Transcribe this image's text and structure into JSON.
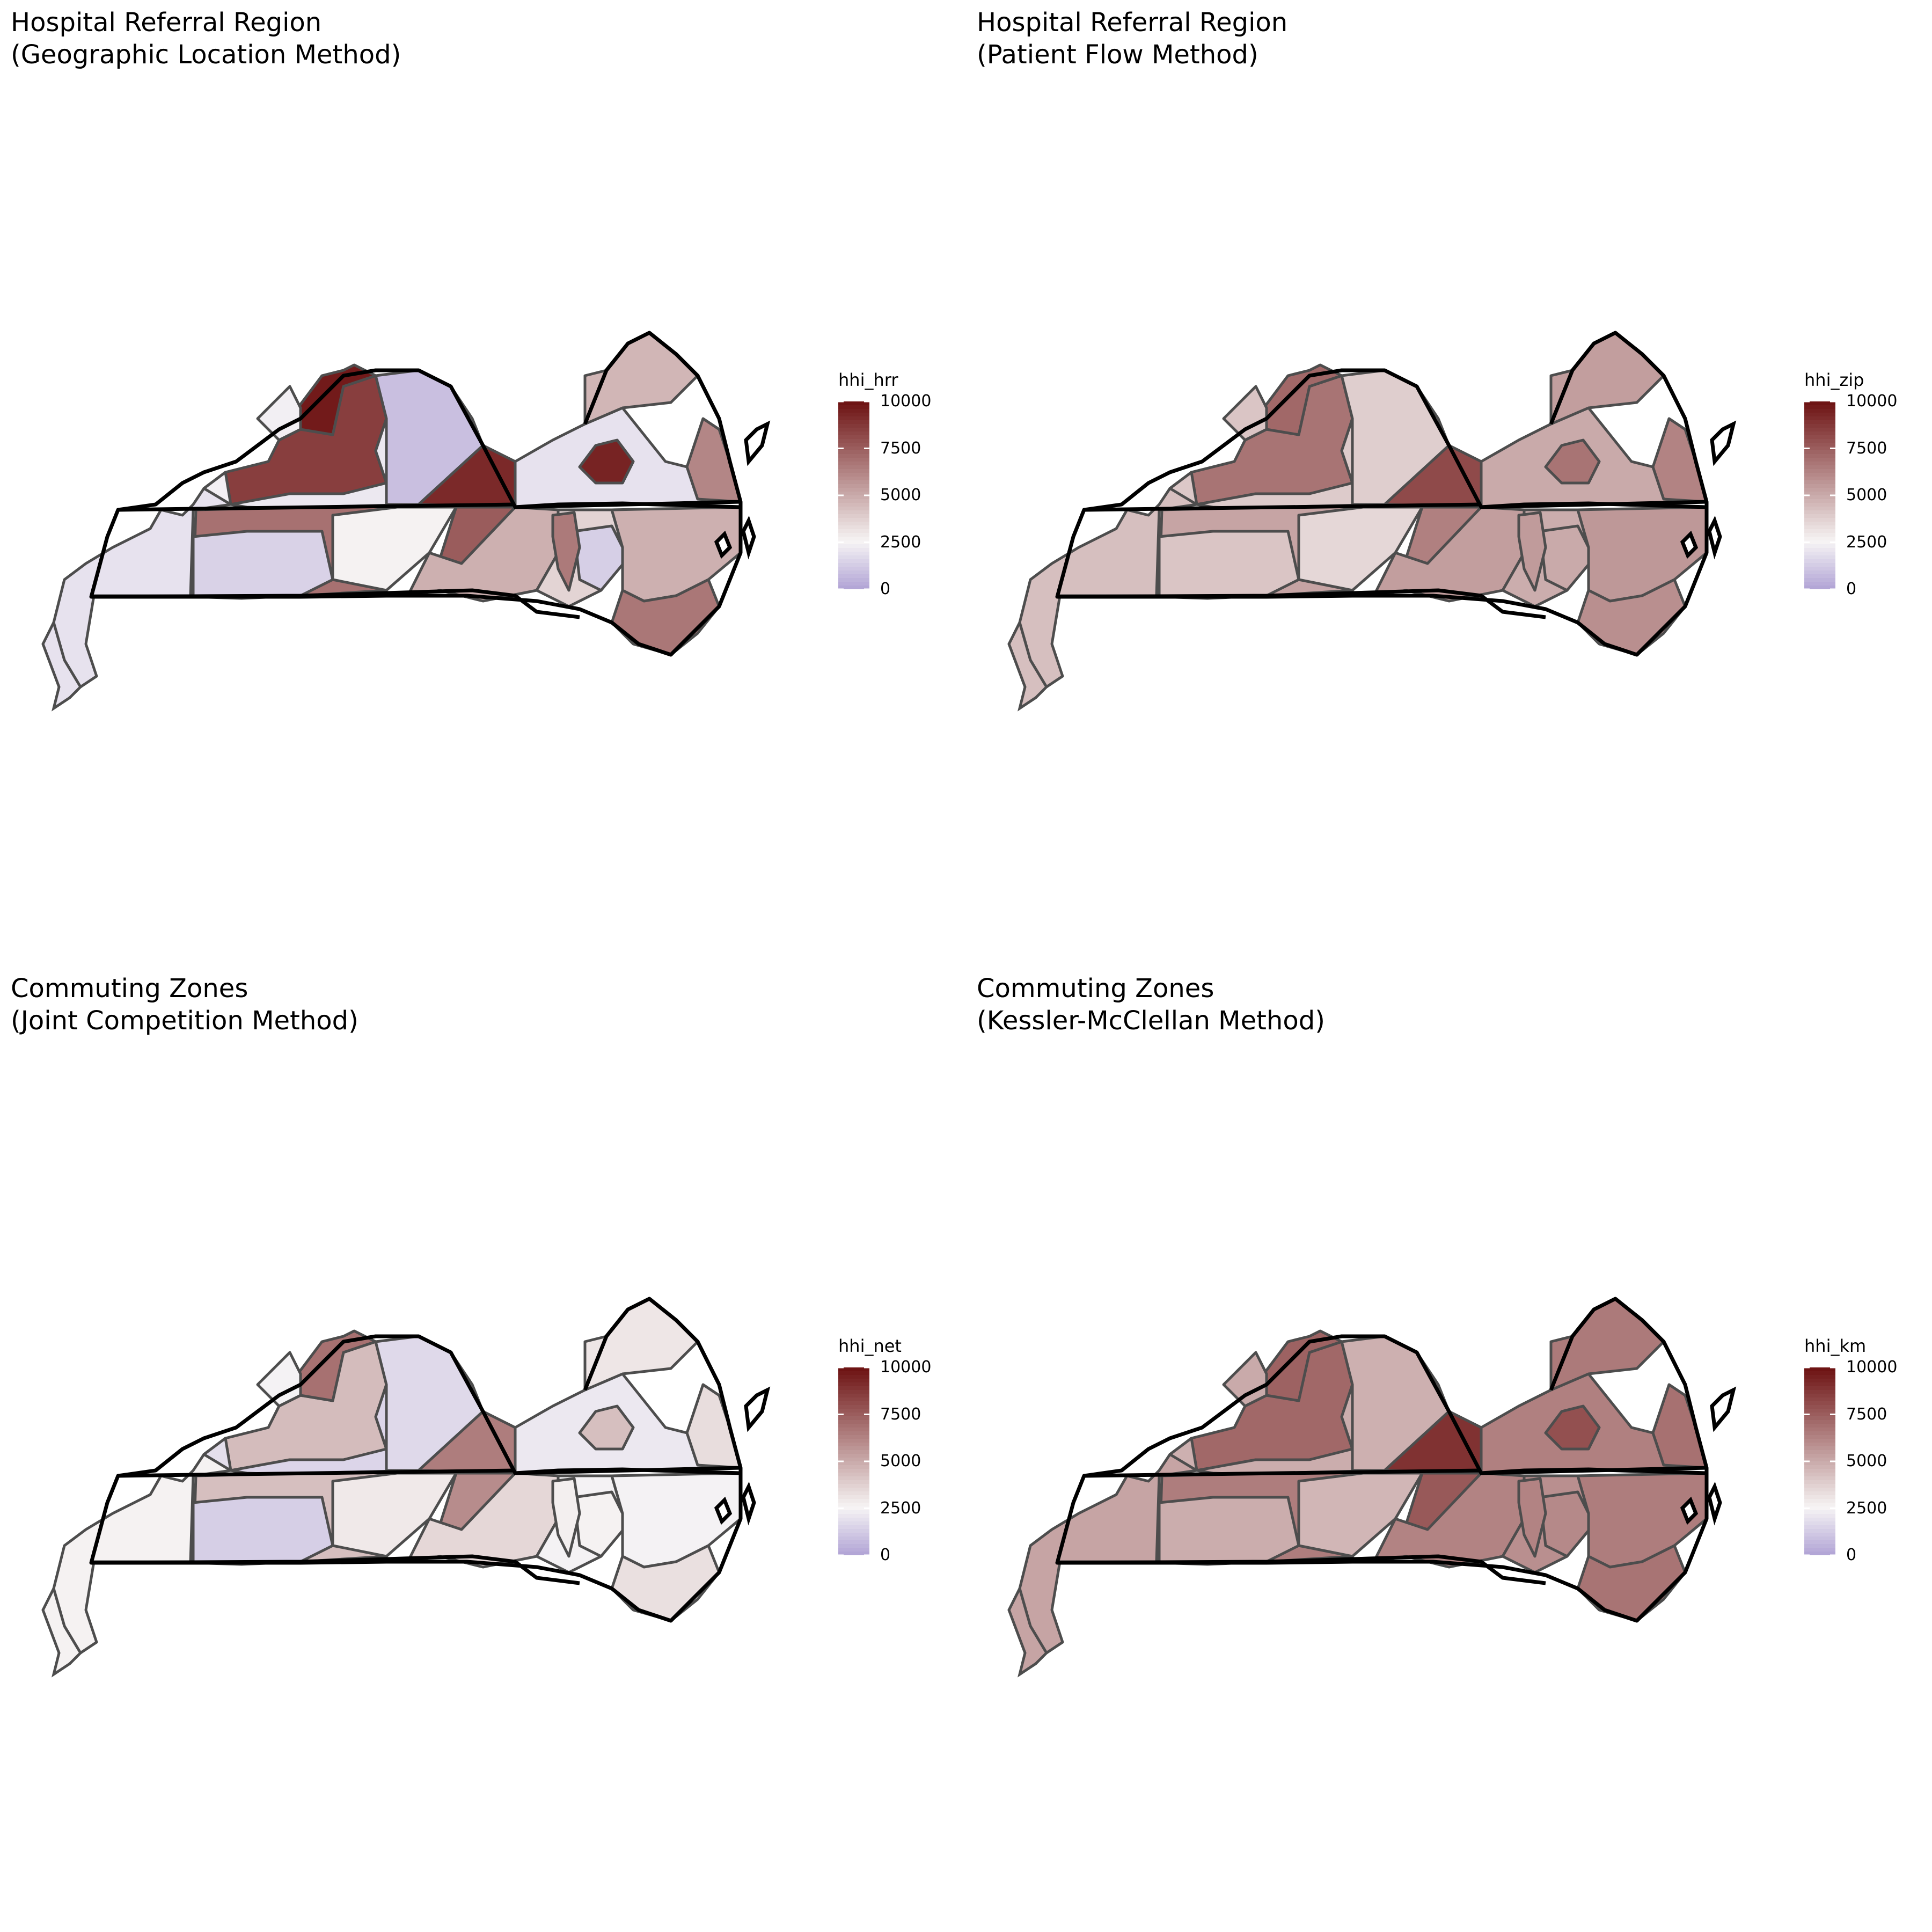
{
  "colors": {
    "low": "#b3a6d6",
    "mid": "#f7f5f5",
    "high": "#6e1414",
    "county_border": "#4d4d4d",
    "state_border": "#000000"
  },
  "legend_scale": {
    "min": 0,
    "midpoint": 2500,
    "max": 10000,
    "ticks": [
      "10000",
      "7500",
      "5000",
      "2500",
      "0"
    ],
    "tick_values": [
      10000,
      7500,
      5000,
      2500,
      0
    ]
  },
  "maps": [
    {
      "title_line1": "Hospital Referral Region",
      "title_line2": "(Geographic Location Method)",
      "legend_title": "hhi_hrr",
      "region_values": {
        "ky_far_west": 1900,
        "ky_owensboro": 8600,
        "ky_north_peak": 9800,
        "ky_north_wedge": 2300,
        "ky_central": 2100,
        "ky_west_mid": 2300,
        "ky_east": 800,
        "va_sw_wedge": 9300,
        "va_central": 1900,
        "va_richmond": 9500,
        "va_north": 4600,
        "va_norfolk": 6200,
        "tn_west": 6900,
        "tn_central": 1400,
        "tn_east_central": 2600,
        "tn_knox": 7600,
        "nc_west": 4800,
        "nc_triad": 3600,
        "nc_central_blue": 1300,
        "nc_east": 4800,
        "nc_peak": 6600,
        "nc_southeast": 6700
      }
    },
    {
      "title_line1": "Hospital Referral Region",
      "title_line2": "(Patient Flow Method)",
      "legend_title": "hhi_zip",
      "region_values": {
        "ky_far_west": 4300,
        "ky_owensboro": 6800,
        "ky_north_peak": 7200,
        "ky_north_wedge": 4100,
        "ky_central": 3900,
        "ky_west_mid": 4000,
        "ky_east": 3800,
        "va_sw_wedge": 8200,
        "va_central": 5000,
        "va_richmond": 6800,
        "va_north": 5400,
        "va_norfolk": 6300,
        "tn_west": 5200,
        "tn_central": 4100,
        "tn_east_central": 3500,
        "tn_knox": 6400,
        "nc_west": 5400,
        "nc_triad": 4900,
        "nc_central_blue": 5000,
        "nc_east": 5600,
        "nc_peak": 5500,
        "nc_southeast": 5900
      }
    },
    {
      "title_line1": "Commuting Zones",
      "title_line2": "(Joint Competition Method)",
      "legend_title": "hhi_net",
      "region_values": {
        "ky_far_west": 2600,
        "ky_owensboro": 4400,
        "ky_north_peak": 6900,
        "ky_north_wedge": 2400,
        "ky_central": 1500,
        "ky_west_mid": 1800,
        "ky_east": 1600,
        "va_sw_wedge": 6500,
        "va_central": 2100,
        "va_richmond": 4300,
        "va_north": 3000,
        "va_norfolk": 3300,
        "tn_west": 4300,
        "tn_central": 1300,
        "tn_east_central": 2900,
        "tn_knox": 6000,
        "nc_west": 3500,
        "nc_triad": 2400,
        "nc_central_blue": 2600,
        "nc_east": 2400,
        "nc_peak": 2700,
        "nc_southeast": 3200
      }
    },
    {
      "title_line1": "Commuting Zones",
      "title_line2": "(Kessler-McClellan Method)",
      "legend_title": "hhi_km",
      "region_values": {
        "ky_far_west": 5200,
        "ky_owensboro": 7200,
        "ky_north_peak": 7400,
        "ky_north_wedge": 5000,
        "ky_central": 4900,
        "ky_west_mid": 4800,
        "ky_east": 4800,
        "va_sw_wedge": 9000,
        "va_central": 6400,
        "va_richmond": 8000,
        "va_north": 6600,
        "va_norfolk": 6900,
        "tn_west": 6500,
        "tn_central": 4900,
        "tn_east_central": 4600,
        "tn_knox": 7700,
        "nc_west": 6300,
        "nc_triad": 5900,
        "nc_central_blue": 6100,
        "nc_east": 6500,
        "nc_peak": 6300,
        "nc_southeast": 6800
      }
    }
  ]
}
